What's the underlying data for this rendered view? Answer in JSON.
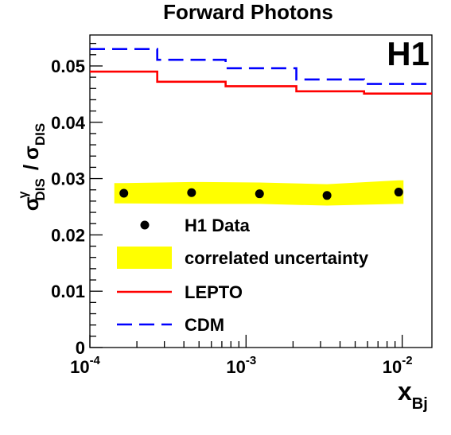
{
  "chart_data": {
    "type": "line",
    "title": "Forward Photons",
    "watermark": "H1",
    "xlabel": "x",
    "xlabel_sub": "Bj",
    "ylabel": {
      "num_sym": "σ",
      "num_sup": "γ",
      "num_sub": "DIS",
      "sep": "/",
      "den_sym": "σ",
      "den_sub": "DIS"
    },
    "x_scale": "log",
    "xlim": [
      0.0001,
      0.0155
    ],
    "ylim": [
      0,
      0.0555
    ],
    "grid": false,
    "y_ticks": [
      {
        "value": 0,
        "label": "0"
      },
      {
        "value": 0.01,
        "label": "0.01"
      },
      {
        "value": 0.02,
        "label": "0.02"
      },
      {
        "value": 0.03,
        "label": "0.03"
      },
      {
        "value": 0.04,
        "label": "0.04"
      },
      {
        "value": 0.05,
        "label": "0.05"
      }
    ],
    "x_ticks": [
      {
        "value": 0.0001,
        "base": "10",
        "exp": "-4"
      },
      {
        "value": 0.001,
        "base": "10",
        "exp": "-3"
      },
      {
        "value": 0.01,
        "base": "10",
        "exp": "-2"
      }
    ],
    "legend_position": "center-left",
    "series": [
      {
        "name": "H1 Data",
        "kind": "points",
        "color": "#000000",
        "x": [
          0.000165,
          0.000448,
          0.00122,
          0.0033,
          0.0095
        ],
        "y": [
          0.0274,
          0.0275,
          0.0273,
          0.027,
          0.0276
        ]
      },
      {
        "name": "correlated uncertainty",
        "kind": "band",
        "color": "#ffff00",
        "x": [
          0.000165,
          0.000448,
          0.00122,
          0.0033,
          0.0095
        ],
        "y_low": [
          0.0256,
          0.0255,
          0.0255,
          0.0252,
          0.0255
        ],
        "y_high": [
          0.0292,
          0.0294,
          0.0293,
          0.029,
          0.0297
        ]
      },
      {
        "name": "LEPTO",
        "kind": "step",
        "color": "#ff0000",
        "bin_edges": [
          0.0001,
          0.00027,
          0.00074,
          0.0021,
          0.0057,
          0.0155
        ],
        "values": [
          0.049,
          0.0472,
          0.0464,
          0.0455,
          0.0451
        ]
      },
      {
        "name": "CDM",
        "kind": "step",
        "color": "#0000ff",
        "dashed": true,
        "bin_edges": [
          0.0001,
          0.00027,
          0.00074,
          0.0021,
          0.0057,
          0.0155
        ],
        "values": [
          0.053,
          0.0511,
          0.0496,
          0.0476,
          0.0468
        ]
      }
    ]
  }
}
